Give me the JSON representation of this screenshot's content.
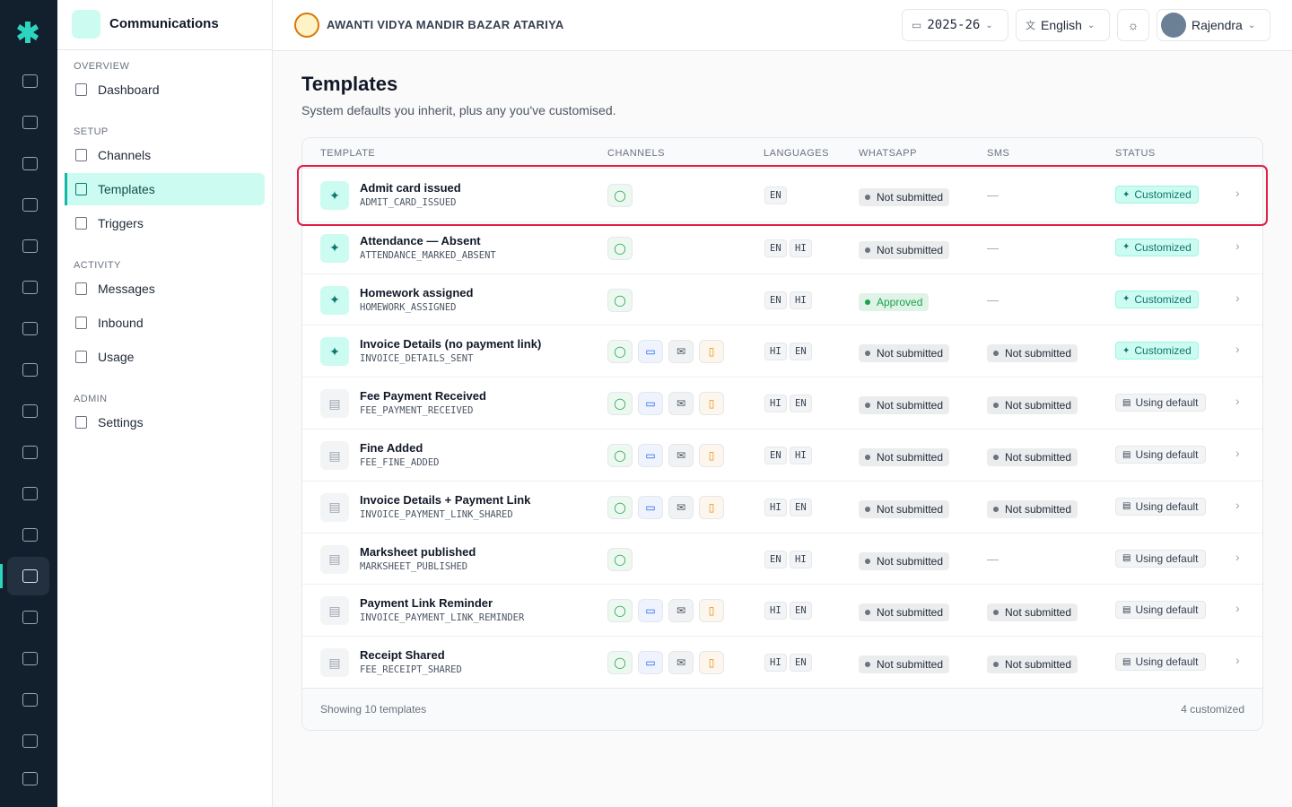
{
  "sidebar": {
    "app_title": "Communications",
    "sections": [
      {
        "title": "OVERVIEW",
        "items": [
          {
            "label": "Dashboard"
          }
        ]
      },
      {
        "title": "SETUP",
        "items": [
          {
            "label": "Channels"
          },
          {
            "label": "Templates",
            "active": true
          },
          {
            "label": "Triggers"
          }
        ]
      },
      {
        "title": "ACTIVITY",
        "items": [
          {
            "label": "Messages"
          },
          {
            "label": "Inbound"
          },
          {
            "label": "Usage"
          }
        ]
      },
      {
        "title": "ADMIN",
        "items": [
          {
            "label": "Settings"
          }
        ]
      }
    ]
  },
  "header": {
    "school": "AWANTI VIDYA MANDIR BAZAR ATARIYA",
    "year": "2025-26",
    "language": "English",
    "user": "Rajendra"
  },
  "page": {
    "title": "Templates",
    "subtitle": "System defaults you inherit, plus any you've customised."
  },
  "table": {
    "columns": [
      "TEMPLATE",
      "CHANNELS",
      "LANGUAGES",
      "WHATSAPP",
      "SMS",
      "STATUS"
    ],
    "rows": [
      {
        "name": "Admit card issued",
        "code": "ADMIT_CARD_ISSUED",
        "channels": [
          "#16a34a"
        ],
        "languages": [
          "EN"
        ],
        "whatsapp": "Not submitted",
        "whatsapp_color": "#6b7280",
        "sms": "—",
        "status": "Customized",
        "customized": true
      },
      {
        "name": "Attendance — Absent",
        "code": "ATTENDANCE_MARKED_ABSENT",
        "channels": [
          "#16a34a"
        ],
        "languages": [
          "EN",
          "HI"
        ],
        "whatsapp": "Not submitted",
        "whatsapp_color": "#6b7280",
        "sms": "—",
        "status": "Customized",
        "customized": true
      },
      {
        "name": "Homework assigned",
        "code": "HOMEWORK_ASSIGNED",
        "channels": [
          "#16a34a"
        ],
        "languages": [
          "EN",
          "HI"
        ],
        "whatsapp": "Approved",
        "whatsapp_color": "#16a34a",
        "sms": "—",
        "status": "Customized",
        "customized": true
      },
      {
        "name": "Invoice Details (no payment link)",
        "code": "INVOICE_DETAILS_SENT",
        "channels": [
          "#16a34a",
          "#2563eb",
          "#4b5563",
          "#ea8c0c"
        ],
        "languages": [
          "HI",
          "EN"
        ],
        "whatsapp": "Not submitted",
        "whatsapp_color": "#6b7280",
        "sms": "Not submitted",
        "status": "Customized",
        "customized": true
      },
      {
        "name": "Fee Payment Received",
        "code": "FEE_PAYMENT_RECEIVED",
        "channels": [
          "#16a34a",
          "#2563eb",
          "#4b5563",
          "#ea8c0c"
        ],
        "languages": [
          "HI",
          "EN"
        ],
        "whatsapp": "Not submitted",
        "whatsapp_color": "#6b7280",
        "sms": "Not submitted",
        "status": "Using default",
        "customized": false
      },
      {
        "name": "Fine Added",
        "code": "FEE_FINE_ADDED",
        "channels": [
          "#16a34a",
          "#2563eb",
          "#4b5563",
          "#ea8c0c"
        ],
        "languages": [
          "EN",
          "HI"
        ],
        "whatsapp": "Not submitted",
        "whatsapp_color": "#6b7280",
        "sms": "Not submitted",
        "status": "Using default",
        "customized": false
      },
      {
        "name": "Invoice Details + Payment Link",
        "code": "INVOICE_PAYMENT_LINK_SHARED",
        "channels": [
          "#16a34a",
          "#2563eb",
          "#4b5563",
          "#ea8c0c"
        ],
        "languages": [
          "HI",
          "EN"
        ],
        "whatsapp": "Not submitted",
        "whatsapp_color": "#6b7280",
        "sms": "Not submitted",
        "status": "Using default",
        "customized": false
      },
      {
        "name": "Marksheet published",
        "code": "MARKSHEET_PUBLISHED",
        "channels": [
          "#16a34a"
        ],
        "languages": [
          "EN",
          "HI"
        ],
        "whatsapp": "Not submitted",
        "whatsapp_color": "#6b7280",
        "sms": "—",
        "status": "Using default",
        "customized": false
      },
      {
        "name": "Payment Link Reminder",
        "code": "INVOICE_PAYMENT_LINK_REMINDER",
        "channels": [
          "#16a34a",
          "#2563eb",
          "#4b5563",
          "#ea8c0c"
        ],
        "languages": [
          "HI",
          "EN"
        ],
        "whatsapp": "Not submitted",
        "whatsapp_color": "#6b7280",
        "sms": "Not submitted",
        "status": "Using default",
        "customized": false
      },
      {
        "name": "Receipt Shared",
        "code": "FEE_RECEIPT_SHARED",
        "channels": [
          "#16a34a",
          "#2563eb",
          "#4b5563",
          "#ea8c0c"
        ],
        "languages": [
          "HI",
          "EN"
        ],
        "whatsapp": "Not submitted",
        "whatsapp_color": "#6b7280",
        "sms": "Not submitted",
        "status": "Using default",
        "customized": false
      }
    ],
    "footer_left": "Showing 10 templates",
    "footer_right": "4 customized"
  }
}
